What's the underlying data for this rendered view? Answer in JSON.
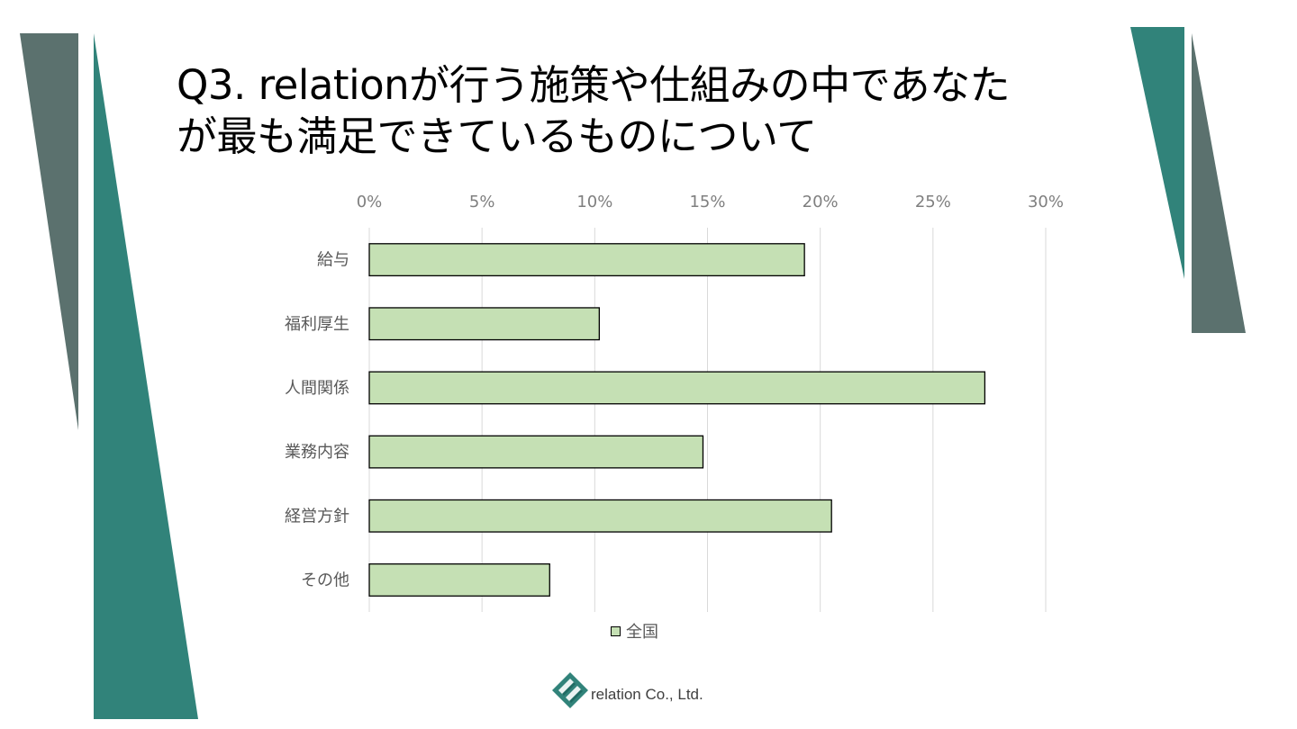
{
  "slide": {
    "title_line1": "Q3. relationが行う施策や仕組みの中であなた",
    "title_line2": "が最も満足できているものについて"
  },
  "colors": {
    "bar_fill": "#c5e0b4",
    "bar_stroke": "#000000",
    "gridline": "#d9d9d9",
    "tick_text": "#7f7f7f",
    "category_text": "#595959",
    "deco_teal": "#31837a",
    "deco_gray": "#5b716e"
  },
  "chart_data": {
    "type": "bar",
    "orientation": "horizontal",
    "categories": [
      "給与",
      "福利厚生",
      "人間関係",
      "業務内容",
      "経営方針",
      "その他"
    ],
    "series": [
      {
        "name": "全国",
        "values": [
          19.3,
          10.2,
          27.3,
          14.8,
          20.5,
          8.0
        ]
      }
    ],
    "xlim": [
      0,
      30
    ],
    "x_ticks": [
      "0%",
      "5%",
      "10%",
      "15%",
      "20%",
      "25%",
      "30%"
    ],
    "x_tick_values": [
      0,
      5,
      10,
      15,
      20,
      25,
      30
    ],
    "axis_position": "top",
    "grid": true,
    "legend_position": "bottom"
  },
  "legend": {
    "label": "全国"
  },
  "footer": {
    "company": "relation Co., Ltd.",
    "logo_icon": "relation-logo-icon"
  }
}
